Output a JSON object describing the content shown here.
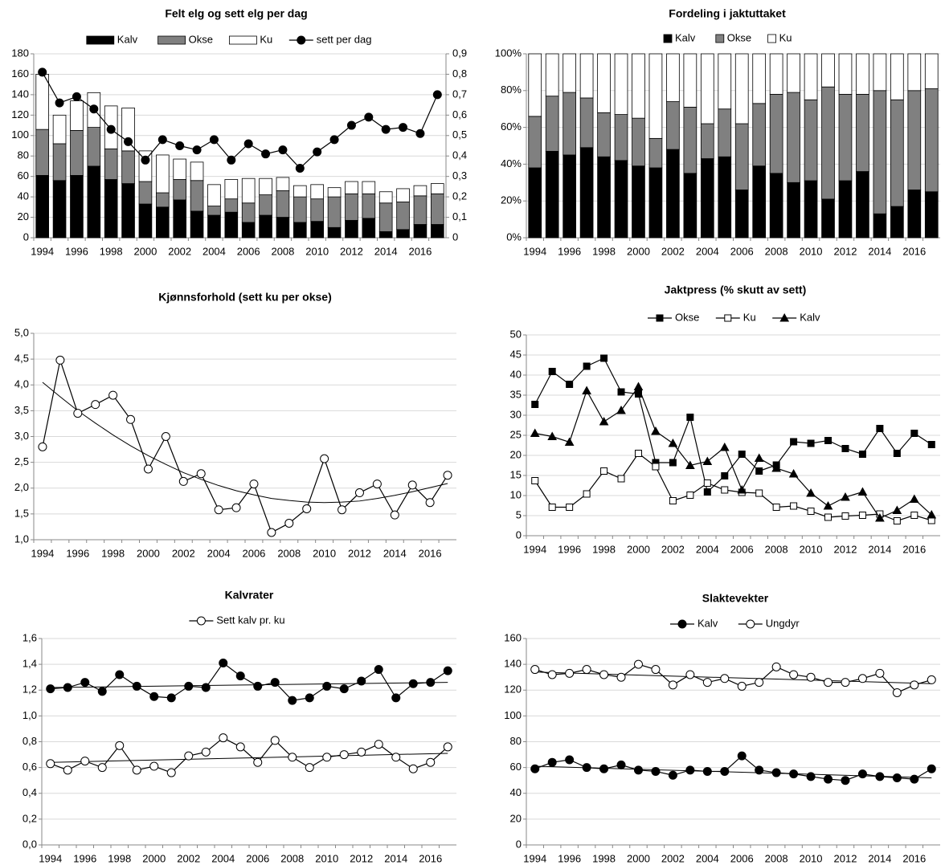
{
  "chart_data": [
    {
      "type": "bar",
      "stacked": true,
      "title": "Felt elg og sett elg per dag",
      "categories": [
        "1994",
        null,
        "1996",
        null,
        "1998",
        null,
        "2000",
        null,
        "2002",
        null,
        "2004",
        null,
        "2006",
        null,
        "2008",
        null,
        "2010",
        null,
        "2012",
        null,
        "2014",
        null,
        "2016",
        null
      ],
      "series": [
        {
          "name": "Kalv",
          "color": "#000000",
          "values": [
            61,
            56,
            61,
            70,
            57,
            53,
            33,
            30,
            37,
            26,
            22,
            25,
            15,
            22,
            20,
            15,
            16,
            10,
            17,
            19,
            6,
            8,
            13,
            13
          ]
        },
        {
          "name": "Okse",
          "color": "#808080",
          "values": [
            45,
            36,
            44,
            38,
            30,
            32,
            22,
            14,
            20,
            30,
            9,
            13,
            19,
            20,
            26,
            25,
            22,
            30,
            26,
            24,
            28,
            27,
            28,
            30
          ]
        },
        {
          "name": "Ku",
          "color": "#ffffff",
          "values": [
            54,
            28,
            29,
            34,
            42,
            42,
            30,
            37,
            20,
            18,
            21,
            19,
            24,
            16,
            13,
            11,
            14,
            9,
            12,
            12,
            11,
            13,
            10,
            10
          ]
        },
        {
          "name": "sett per dag",
          "type": "line",
          "axis": "y2",
          "color": "#000000",
          "marker": "circle",
          "marker_color": "#000000",
          "values": [
            0.81,
            0.66,
            0.69,
            0.63,
            0.53,
            0.47,
            0.38,
            0.48,
            0.45,
            0.43,
            0.48,
            0.38,
            0.46,
            0.41,
            0.43,
            0.34,
            0.42,
            0.48,
            0.55,
            0.59,
            0.53,
            0.54,
            0.51,
            0.7
          ]
        }
      ],
      "ylim": [
        0,
        180
      ],
      "yticks": [
        0,
        20,
        40,
        60,
        80,
        100,
        120,
        140,
        160,
        180
      ],
      "y2lim": [
        0,
        0.9
      ],
      "y2ticks": [
        0,
        {
          "value": 0.1,
          "label": "0,1"
        },
        {
          "value": 0.2,
          "label": "0,2"
        },
        {
          "value": 0.3,
          "label": "0,3"
        },
        {
          "value": 0.4,
          "label": "0,4"
        },
        {
          "value": 0.5,
          "label": "0,5"
        },
        {
          "value": 0.6,
          "label": "0,6"
        },
        {
          "value": 0.7,
          "label": "0,7"
        },
        {
          "value": 0.8,
          "label": "0,8"
        },
        {
          "value": 0.9,
          "label": "0,9"
        }
      ],
      "grid": true
    },
    {
      "type": "bar",
      "stacked": true,
      "title": "Fordeling i jaktuttaket",
      "categories": [
        "1994",
        null,
        "1996",
        null,
        "1998",
        null,
        "2000",
        null,
        "2002",
        null,
        "2004",
        null,
        "2006",
        null,
        "2008",
        null,
        "2010",
        null,
        "2012",
        null,
        "2014",
        null,
        "2016",
        null
      ],
      "series": [
        {
          "name": "Kalv",
          "color": "#000000",
          "values": [
            38,
            47,
            45,
            49,
            44,
            42,
            39,
            38,
            48,
            35,
            43,
            44,
            26,
            39,
            35,
            30,
            31,
            21,
            31,
            36,
            13,
            17,
            26,
            25
          ]
        },
        {
          "name": "Okse",
          "color": "#808080",
          "values": [
            28,
            30,
            34,
            27,
            24,
            25,
            26,
            16,
            26,
            36,
            19,
            26,
            36,
            34,
            43,
            49,
            44,
            61,
            47,
            42,
            67,
            58,
            54,
            56
          ]
        },
        {
          "name": "Ku",
          "color": "#ffffff",
          "values": [
            34,
            23,
            21,
            24,
            32,
            33,
            35,
            46,
            26,
            29,
            38,
            30,
            38,
            27,
            22,
            21,
            25,
            18,
            22,
            22,
            20,
            25,
            20,
            19
          ]
        }
      ],
      "ylim": [
        0,
        100
      ],
      "yticks": [
        {
          "value": 0,
          "label": "0%"
        },
        {
          "value": 20,
          "label": "20%"
        },
        {
          "value": 40,
          "label": "40%"
        },
        {
          "value": 60,
          "label": "60%"
        },
        {
          "value": 80,
          "label": "80%"
        },
        {
          "value": 100,
          "label": "100%"
        }
      ],
      "grid": true
    },
    {
      "type": "line",
      "title": "Kjønnsforhold (sett ku per okse)",
      "categories": [
        "1994",
        null,
        "1996",
        null,
        "1998",
        null,
        "2000",
        null,
        "2002",
        null,
        "2004",
        null,
        "2006",
        null,
        "2008",
        null,
        "2010",
        null,
        "2012",
        null,
        "2014",
        null,
        "2016",
        null
      ],
      "series": [
        {
          "color": "#000000",
          "marker": "circle",
          "marker_color": "#ffffff",
          "values": [
            2.8,
            4.48,
            3.45,
            3.62,
            3.8,
            3.33,
            2.37,
            3.0,
            2.13,
            2.28,
            1.58,
            1.62,
            2.08,
            1.14,
            1.32,
            1.6,
            2.57,
            1.58,
            1.91,
            2.08,
            1.48,
            2.06,
            1.72,
            2.25
          ],
          "trend": [
            4.05,
            3.77,
            3.5,
            3.26,
            3.03,
            2.82,
            2.63,
            2.46,
            2.3,
            2.17,
            2.05,
            1.95,
            1.87,
            1.8,
            1.76,
            1.73,
            1.72,
            1.73,
            1.75,
            1.8,
            1.86,
            1.93,
            2.01,
            2.09
          ]
        }
      ],
      "ylim": [
        1,
        5
      ],
      "yticks": [
        {
          "value": 1,
          "label": "1,0"
        },
        {
          "value": 1.5,
          "label": "1,5"
        },
        {
          "value": 2,
          "label": "2,0"
        },
        {
          "value": 2.5,
          "label": "2,5"
        },
        {
          "value": 3,
          "label": "3,0"
        },
        {
          "value": 3.5,
          "label": "3,5"
        },
        {
          "value": 4,
          "label": "4,0"
        },
        {
          "value": 4.5,
          "label": "4,5"
        },
        {
          "value": 5,
          "label": "5,0"
        }
      ],
      "grid": true
    },
    {
      "type": "line",
      "title": "Jaktpress (% skutt av sett)",
      "categories": [
        "1994",
        null,
        "1996",
        null,
        "1998",
        null,
        "2000",
        null,
        "2002",
        null,
        "2004",
        null,
        "2006",
        null,
        "2008",
        null,
        "2010",
        null,
        "2012",
        null,
        "2014",
        null,
        "2016",
        null
      ],
      "series": [
        {
          "name": "Okse",
          "color": "#000000",
          "marker": "square",
          "marker_color": "#000000",
          "values": [
            32.7,
            40.9,
            37.7,
            42.2,
            44.2,
            35.8,
            35.3,
            18.2,
            18.2,
            29.5,
            10.9,
            14.9,
            20.3,
            16.1,
            17.6,
            23.4,
            23,
            23.7,
            21.7,
            20.3,
            26.7,
            20.5,
            25.5,
            22.7
          ]
        },
        {
          "name": "Ku",
          "color": "#000000",
          "marker": "square",
          "marker_color": "#ffffff",
          "values": [
            13.7,
            7.1,
            7.1,
            10.4,
            16.1,
            14.2,
            20.5,
            17.2,
            8.7,
            10.1,
            13.1,
            11.4,
            10.8,
            10.6,
            7.1,
            7.4,
            6.1,
            4.6,
            4.9,
            5.1,
            5.4,
            3.7,
            5.1,
            3.8
          ]
        },
        {
          "name": "Kalv",
          "color": "#000000",
          "marker": "triangle",
          "marker_color": "#000000",
          "values": [
            25.5,
            24.7,
            23.3,
            36.1,
            28.4,
            31.2,
            37.1,
            26,
            23,
            17.5,
            18.5,
            22,
            11.4,
            19.3,
            16.8,
            15.4,
            10.6,
            7.4,
            9.6,
            10.9,
            4.4,
            6.3,
            9.1,
            5.2
          ]
        }
      ],
      "ylim": [
        0,
        50
      ],
      "yticks": [
        0,
        5,
        10,
        15,
        20,
        25,
        30,
        35,
        40,
        45,
        50
      ],
      "grid": true
    },
    {
      "type": "line",
      "title": "Kalvrater",
      "categories": [
        "1994",
        null,
        "1996",
        null,
        "1998",
        null,
        "2000",
        null,
        "2002",
        null,
        "2004",
        null,
        "2006",
        null,
        "2008",
        null,
        "2010",
        null,
        "2012",
        null,
        "2014",
        null,
        "2016",
        null
      ],
      "series": [
        {
          "name": "Sett kalv pr. ku",
          "color": "#000000",
          "marker": "circle",
          "marker_color": "#ffffff",
          "values": [
            0.63,
            0.58,
            0.65,
            0.6,
            0.77,
            0.58,
            0.61,
            0.56,
            0.69,
            0.72,
            0.83,
            0.76,
            0.64,
            0.81,
            0.68,
            0.6,
            0.68,
            0.7,
            0.72,
            0.78,
            0.68,
            0.59,
            0.64,
            0.76
          ],
          "trend": [
            0.64,
            0.71
          ]
        },
        {
          "color": "#000000",
          "marker": "circle",
          "marker_color": "#000000",
          "values": [
            1.21,
            1.22,
            1.26,
            1.19,
            1.32,
            1.23,
            1.15,
            1.14,
            1.23,
            1.22,
            1.41,
            1.31,
            1.23,
            1.26,
            1.12,
            1.14,
            1.23,
            1.21,
            1.27,
            1.36,
            1.14,
            1.25,
            1.26,
            1.35
          ],
          "trend": [
            1.22,
            1.26
          ]
        }
      ],
      "ylim": [
        0,
        1.6
      ],
      "yticks": [
        {
          "value": 0,
          "label": "0,0"
        },
        {
          "value": 0.2,
          "label": "0,2"
        },
        {
          "value": 0.4,
          "label": "0,4"
        },
        {
          "value": 0.6,
          "label": "0,6"
        },
        {
          "value": 0.8,
          "label": "0,8"
        },
        {
          "value": 1,
          "label": "1,0"
        },
        {
          "value": 1.2,
          "label": "1,2"
        },
        {
          "value": 1.4,
          "label": "1,4"
        },
        {
          "value": 1.6,
          "label": "1,6"
        }
      ],
      "grid": true
    },
    {
      "type": "line",
      "title": "Slaktevekter",
      "categories": [
        "1994",
        null,
        "1996",
        null,
        "1998",
        null,
        "2000",
        null,
        "2002",
        null,
        "2004",
        null,
        "2006",
        null,
        "2008",
        null,
        "2010",
        null,
        "2012",
        null,
        "2014",
        null,
        "2016",
        null
      ],
      "series": [
        {
          "name": "Kalv",
          "color": "#000000",
          "marker": "circle",
          "marker_color": "#000000",
          "values": [
            59,
            64,
            66,
            60,
            59,
            62,
            58,
            57,
            54,
            58,
            57,
            57,
            69,
            58,
            56,
            55,
            53,
            51,
            50,
            55,
            53,
            52,
            51,
            59
          ],
          "trend": [
            61,
            52
          ]
        },
        {
          "name": "Ungdyr",
          "color": "#000000",
          "marker": "circle",
          "marker_color": "#ffffff",
          "values": [
            136,
            132,
            133,
            136,
            132,
            130,
            140,
            136,
            124,
            132,
            126,
            129,
            123,
            126,
            138,
            132,
            130,
            126,
            126,
            129,
            133,
            118,
            124,
            128
          ],
          "trend": [
            134,
            125
          ]
        }
      ],
      "ylim": [
        0,
        160
      ],
      "yticks": [
        0,
        20,
        40,
        60,
        80,
        100,
        120,
        140,
        160
      ],
      "grid": true
    }
  ]
}
